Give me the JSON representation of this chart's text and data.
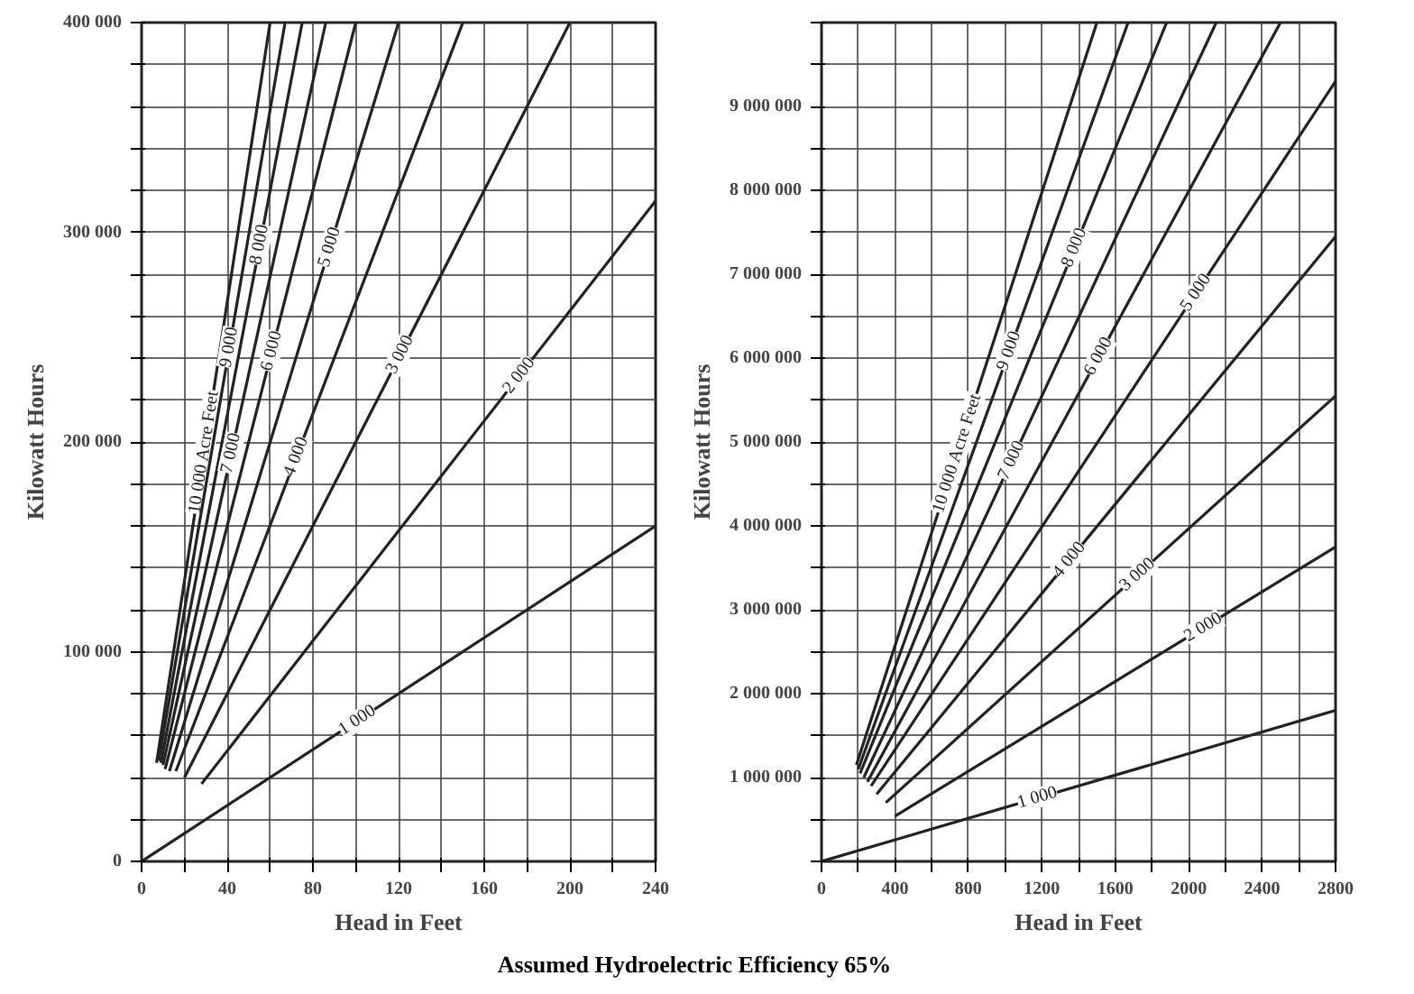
{
  "chart_data": [
    {
      "type": "line",
      "xlabel": "Head in Feet",
      "ylabel": "Kilowatt Hours",
      "xlim": [
        0,
        240
      ],
      "ylim": [
        0,
        400000
      ],
      "grid": true,
      "marker": "none",
      "line_style": "solid",
      "xticks": [
        0,
        {
          "value": 20,
          "label": null
        },
        40,
        {
          "value": 60,
          "label": null
        },
        80,
        {
          "value": 100,
          "label": null
        },
        120,
        {
          "value": 140,
          "label": null
        },
        160,
        {
          "value": 180,
          "label": null
        },
        200,
        {
          "value": 220,
          "label": null
        },
        240
      ],
      "yticks": [
        0,
        {
          "value": 20000,
          "label": null
        },
        {
          "value": 40000,
          "label": null
        },
        {
          "value": 60000,
          "label": null
        },
        {
          "value": 80000,
          "label": null
        },
        {
          "value": 100000,
          "label": "100 000"
        },
        {
          "value": 120000,
          "label": null
        },
        {
          "value": 140000,
          "label": null
        },
        {
          "value": 160000,
          "label": null
        },
        {
          "value": 180000,
          "label": null
        },
        {
          "value": 200000,
          "label": "200 000"
        },
        {
          "value": 220000,
          "label": null
        },
        {
          "value": 240000,
          "label": null
        },
        {
          "value": 260000,
          "label": null
        },
        {
          "value": 280000,
          "label": null
        },
        {
          "value": 300000,
          "label": "300 000"
        },
        {
          "value": 320000,
          "label": null
        },
        {
          "value": 340000,
          "label": null
        },
        {
          "value": 360000,
          "label": null
        },
        {
          "value": 380000,
          "label": null
        },
        {
          "value": 400000,
          "label": "400 000"
        }
      ],
      "series": [
        {
          "name": "10 000 Acre Feet",
          "color": "#222222",
          "x": [
            7,
            60
          ],
          "values": [
            47000,
            400000
          ]
        },
        {
          "name": "9 000",
          "color": "#222222",
          "x": [
            8,
            67
          ],
          "values": [
            48000,
            400000
          ]
        },
        {
          "name": "8 000",
          "color": "#222222",
          "x": [
            9,
            75
          ],
          "values": [
            47000,
            400000
          ]
        },
        {
          "name": "7 000",
          "color": "#222222",
          "x": [
            10,
            86
          ],
          "values": [
            46000,
            400000
          ]
        },
        {
          "name": "6 000",
          "color": "#222222",
          "x": [
            11,
            100
          ],
          "values": [
            44000,
            400000
          ]
        },
        {
          "name": "5 000",
          "color": "#222222",
          "x": [
            13,
            120
          ],
          "values": [
            43000,
            400000
          ]
        },
        {
          "name": "4 000",
          "color": "#222222",
          "x": [
            16,
            150
          ],
          "values": [
            43000,
            400000
          ]
        },
        {
          "name": "3 000",
          "color": "#222222",
          "x": [
            20,
            200
          ],
          "values": [
            40000,
            400000
          ]
        },
        {
          "name": "2 000",
          "color": "#222222",
          "x": [
            28,
            240
          ],
          "values": [
            37000,
            315000
          ]
        },
        {
          "name": "1 000",
          "color": "#222222",
          "x": [
            0,
            240
          ],
          "values": [
            0,
            160000
          ]
        }
      ],
      "annotations": [
        "Assumed Hydroelectric Efficiency 65%"
      ]
    },
    {
      "type": "line",
      "xlabel": "Head in Feet",
      "ylabel": "Kilowatt Hours",
      "xlim": [
        0,
        2800
      ],
      "ylim": [
        0,
        10000000
      ],
      "grid": true,
      "marker": "none",
      "line_style": "solid",
      "xticks": [
        0,
        {
          "value": 200,
          "label": null
        },
        400,
        {
          "value": 600,
          "label": null
        },
        800,
        {
          "value": 1000,
          "label": null
        },
        1200,
        {
          "value": 1400,
          "label": null
        },
        1600,
        {
          "value": 1800,
          "label": null
        },
        2000,
        {
          "value": 2200,
          "label": null
        },
        2400,
        {
          "value": 2600,
          "label": null
        },
        2800
      ],
      "yticks": [
        {
          "value": 0,
          "label": null
        },
        {
          "value": 500000,
          "label": null
        },
        {
          "value": 1000000,
          "label": "1 000 000"
        },
        {
          "value": 1500000,
          "label": null
        },
        {
          "value": 2000000,
          "label": "2 000 000"
        },
        {
          "value": 2500000,
          "label": null
        },
        {
          "value": 3000000,
          "label": "3 000 000"
        },
        {
          "value": 3500000,
          "label": null
        },
        {
          "value": 4000000,
          "label": "4 000 000"
        },
        {
          "value": 4500000,
          "label": null
        },
        {
          "value": 5000000,
          "label": "5 000 000"
        },
        {
          "value": 5500000,
          "label": null
        },
        {
          "value": 6000000,
          "label": "6 000 000"
        },
        {
          "value": 6500000,
          "label": null
        },
        {
          "value": 7000000,
          "label": "7 000 000"
        },
        {
          "value": 7500000,
          "label": null
        },
        {
          "value": 8000000,
          "label": "8 000 000"
        },
        {
          "value": 8500000,
          "label": null
        },
        {
          "value": 9000000,
          "label": "9 000 000"
        },
        {
          "value": 9500000,
          "label": null
        },
        {
          "value": 10000000,
          "label": null
        }
      ],
      "series": [
        {
          "name": "10 000 Acre Feet",
          "color": "#222222",
          "x": [
            190,
            1500
          ],
          "values": [
            1150000,
            10000000
          ]
        },
        {
          "name": "9 000",
          "color": "#222222",
          "x": [
            200,
            1670
          ],
          "values": [
            1100000,
            10000000
          ]
        },
        {
          "name": "8 000",
          "color": "#222222",
          "x": [
            210,
            1880
          ],
          "values": [
            1050000,
            10000000
          ]
        },
        {
          "name": "7 000",
          "color": "#222222",
          "x": [
            230,
            2150
          ],
          "values": [
            1000000,
            10000000
          ]
        },
        {
          "name": "6 000",
          "color": "#222222",
          "x": [
            250,
            2500
          ],
          "values": [
            950000,
            10000000
          ]
        },
        {
          "name": "5 000",
          "color": "#222222",
          "x": [
            270,
            2800
          ],
          "values": [
            900000,
            9300000
          ]
        },
        {
          "name": "4 000",
          "color": "#222222",
          "x": [
            300,
            2800
          ],
          "values": [
            800000,
            7450000
          ]
        },
        {
          "name": "3 000",
          "color": "#222222",
          "x": [
            350,
            2800
          ],
          "values": [
            700000,
            5550000
          ]
        },
        {
          "name": "2 000",
          "color": "#222222",
          "x": [
            400,
            2800
          ],
          "values": [
            540000,
            3750000
          ]
        },
        {
          "name": "1 000",
          "color": "#222222",
          "x": [
            0,
            2800
          ],
          "values": [
            0,
            1800000
          ]
        }
      ]
    }
  ]
}
